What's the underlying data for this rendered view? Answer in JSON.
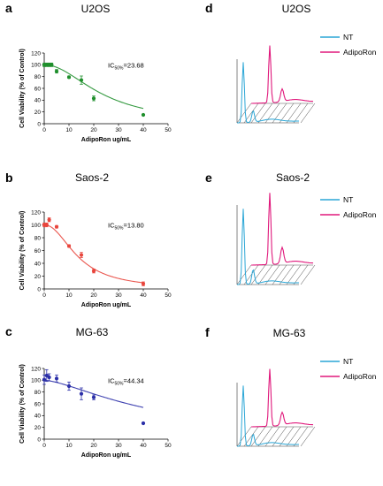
{
  "chart_data": [
    {
      "type": "scatter",
      "panel": "a",
      "title": "U2OS",
      "xlabel": "AdipoRon ug/mL",
      "ylabel": "Cell Viability (% of Control)",
      "xlim": [
        0,
        50
      ],
      "ylim": [
        0,
        120
      ],
      "xticks": [
        0,
        10,
        20,
        30,
        40,
        50
      ],
      "yticks": [
        0,
        20,
        40,
        60,
        80,
        100,
        120
      ],
      "annotation": {
        "pre": "IC",
        "sub": "50%",
        "post": "=23.68"
      },
      "color": "#1f8f2c",
      "x": [
        0,
        1,
        2,
        3,
        5,
        10,
        15,
        20,
        40
      ],
      "y": [
        100,
        100,
        100,
        100,
        89,
        79,
        74,
        43,
        15
      ],
      "err": [
        3,
        3,
        3,
        3,
        3,
        2,
        7,
        4,
        1
      ],
      "fit_ic50": 23.68,
      "fit_hill": 2.0
    },
    {
      "type": "scatter",
      "panel": "b",
      "title": "Saos-2",
      "xlabel": "AdipoRon ug/mL",
      "ylabel": "Cell Viability (% of Control)",
      "xlim": [
        0,
        50
      ],
      "ylim": [
        0,
        120
      ],
      "xticks": [
        0,
        10,
        20,
        30,
        40,
        50
      ],
      "yticks": [
        0,
        20,
        40,
        60,
        80,
        100,
        120
      ],
      "annotation": {
        "pre": "IC",
        "sub": "50%",
        "post": "=13.80"
      },
      "color": "#e8453c",
      "x": [
        0,
        1,
        2,
        5,
        10,
        15,
        20,
        40
      ],
      "y": [
        100,
        100,
        108,
        97,
        67,
        53,
        28,
        8
      ],
      "err": [
        3,
        3,
        3,
        2,
        2,
        4,
        3,
        3
      ],
      "fit_ic50": 13.8,
      "fit_hill": 2.1
    },
    {
      "type": "scatter",
      "panel": "c",
      "title": "MG-63",
      "xlabel": "AdipoRon ug/mL",
      "ylabel": "Cell Viability (% of Control)",
      "xlim": [
        0,
        50
      ],
      "ylim": [
        0,
        120
      ],
      "xticks": [
        0,
        10,
        20,
        30,
        40,
        50
      ],
      "yticks": [
        0,
        20,
        40,
        60,
        80,
        100,
        120
      ],
      "annotation": {
        "pre": "IC",
        "sub": "50%",
        "post": "=44.34"
      },
      "color": "#2b2fa8",
      "x": [
        0,
        1,
        2,
        5,
        10,
        15,
        20,
        40
      ],
      "y": [
        101,
        108,
        105,
        103,
        90,
        77,
        71,
        27
      ],
      "err": [
        8,
        10,
        6,
        6,
        7,
        10,
        4,
        1
      ],
      "fit_ic50": 44.34,
      "fit_hill": 1.5
    },
    {
      "type": "histogram",
      "panel": "d",
      "title": "U2OS",
      "legend": [
        {
          "name": "NT",
          "color": "#2aa6d6"
        },
        {
          "name": "AdipoRon",
          "color": "#e0197c"
        }
      ]
    },
    {
      "type": "histogram",
      "panel": "e",
      "title": "Saos-2",
      "legend": [
        {
          "name": "NT",
          "color": "#2aa6d6"
        },
        {
          "name": "AdipoRon",
          "color": "#e0197c"
        }
      ]
    },
    {
      "type": "histogram",
      "panel": "f",
      "title": "MG-63",
      "legend": [
        {
          "name": "NT",
          "color": "#2aa6d6"
        },
        {
          "name": "AdipoRon",
          "color": "#e0197c"
        }
      ]
    }
  ]
}
